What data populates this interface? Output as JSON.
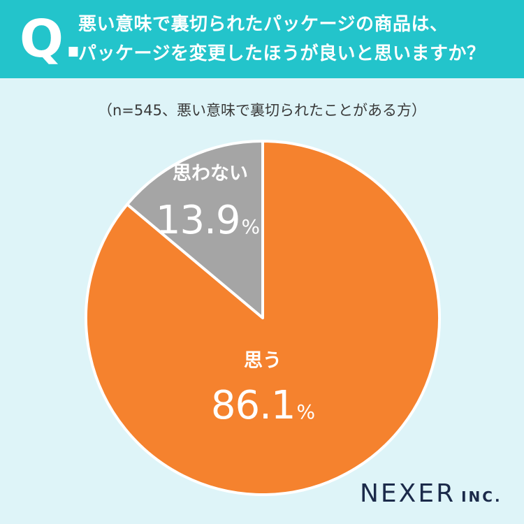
{
  "header": {
    "q_mark": "Q.",
    "question_line1": "悪い意味で裏切られたパッケージの商品は、",
    "question_line2": "パッケージを変更したほうが良いと思いますか？"
  },
  "sample_note": "（n=545、悪い意味で裏切られたことがある方）",
  "colors": {
    "header_bg": "#23c4cb",
    "page_bg": "#def4f8",
    "slice_yes": "#f5822e",
    "slice_no": "#a5a5a5",
    "slice_border": "#ffffff"
  },
  "chart_data": {
    "type": "pie",
    "start": "12 o'clock",
    "direction": "clockwise",
    "slices": [
      {
        "label": "思う",
        "value": 86.1,
        "display": "86.1",
        "unit": "%",
        "color": "#f5822e"
      },
      {
        "label": "思わない",
        "value": 13.9,
        "display": "13.9",
        "unit": "%",
        "color": "#a5a5a5"
      }
    ]
  },
  "brand": {
    "name": "NEXER",
    "suffix": "INC."
  }
}
